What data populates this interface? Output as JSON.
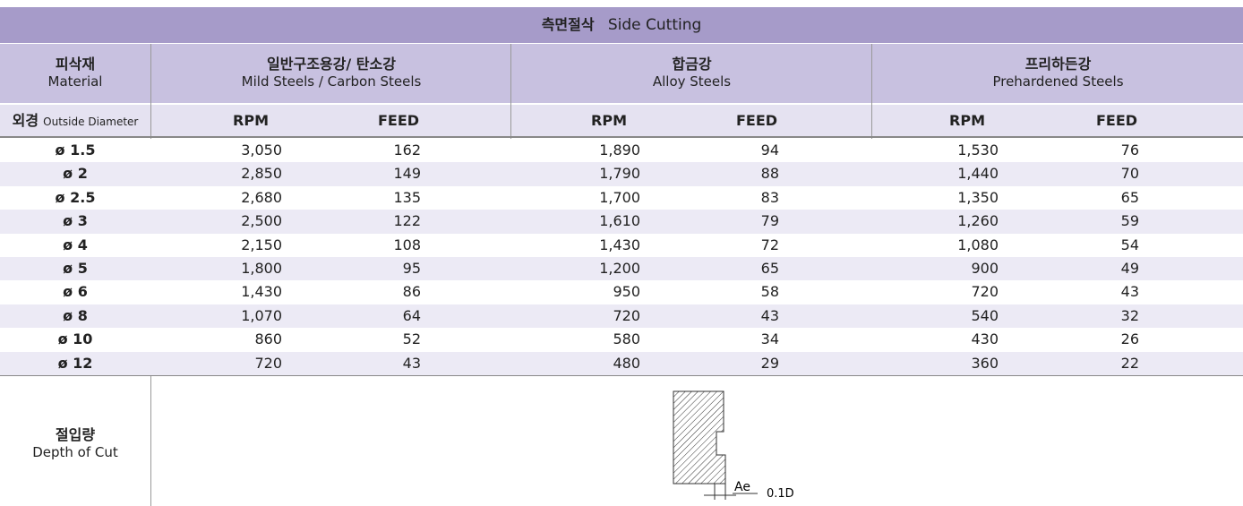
{
  "title": {
    "ko": "측면절삭",
    "en": "Side Cutting"
  },
  "header": {
    "material": {
      "ko": "피삭재",
      "en": "Material"
    },
    "groups": [
      {
        "ko": "일반구조용강/ 탄소강",
        "en": "Mild Steels / Carbon Steels"
      },
      {
        "ko": "합금강",
        "en": "Alloy Steels"
      },
      {
        "ko": "프리하든강",
        "en": "Prehardened Steels"
      }
    ],
    "diameter": {
      "ko": "외경",
      "en": "Outside Diameter"
    },
    "columns": [
      "RPM",
      "FEED"
    ]
  },
  "rows": [
    [
      "ø 1.5",
      "3,050",
      "162",
      "1,890",
      "94",
      "1,530",
      "76"
    ],
    [
      "ø 2",
      "2,850",
      "149",
      "1,790",
      "88",
      "1,440",
      "70"
    ],
    [
      "ø 2.5",
      "2,680",
      "135",
      "1,700",
      "83",
      "1,350",
      "65"
    ],
    [
      "ø 3",
      "2,500",
      "122",
      "1,610",
      "79",
      "1,260",
      "59"
    ],
    [
      "ø 4",
      "2,150",
      "108",
      "1,430",
      "72",
      "1,080",
      "54"
    ],
    [
      "ø 5",
      "1,800",
      "95",
      "1,200",
      "65",
      "900",
      "49"
    ],
    [
      "ø 6",
      "1,430",
      "86",
      "950",
      "58",
      "720",
      "43"
    ],
    [
      "ø 8",
      "1,070",
      "64",
      "720",
      "43",
      "540",
      "32"
    ],
    [
      "ø 10",
      "860",
      "52",
      "580",
      "34",
      "430",
      "26"
    ],
    [
      "ø 12",
      "720",
      "43",
      "480",
      "29",
      "360",
      "22"
    ]
  ],
  "depth": {
    "ko": "절입량",
    "en": "Depth of Cut",
    "diagram": {
      "ae": "Ae",
      "amount": "0.1D"
    }
  }
}
